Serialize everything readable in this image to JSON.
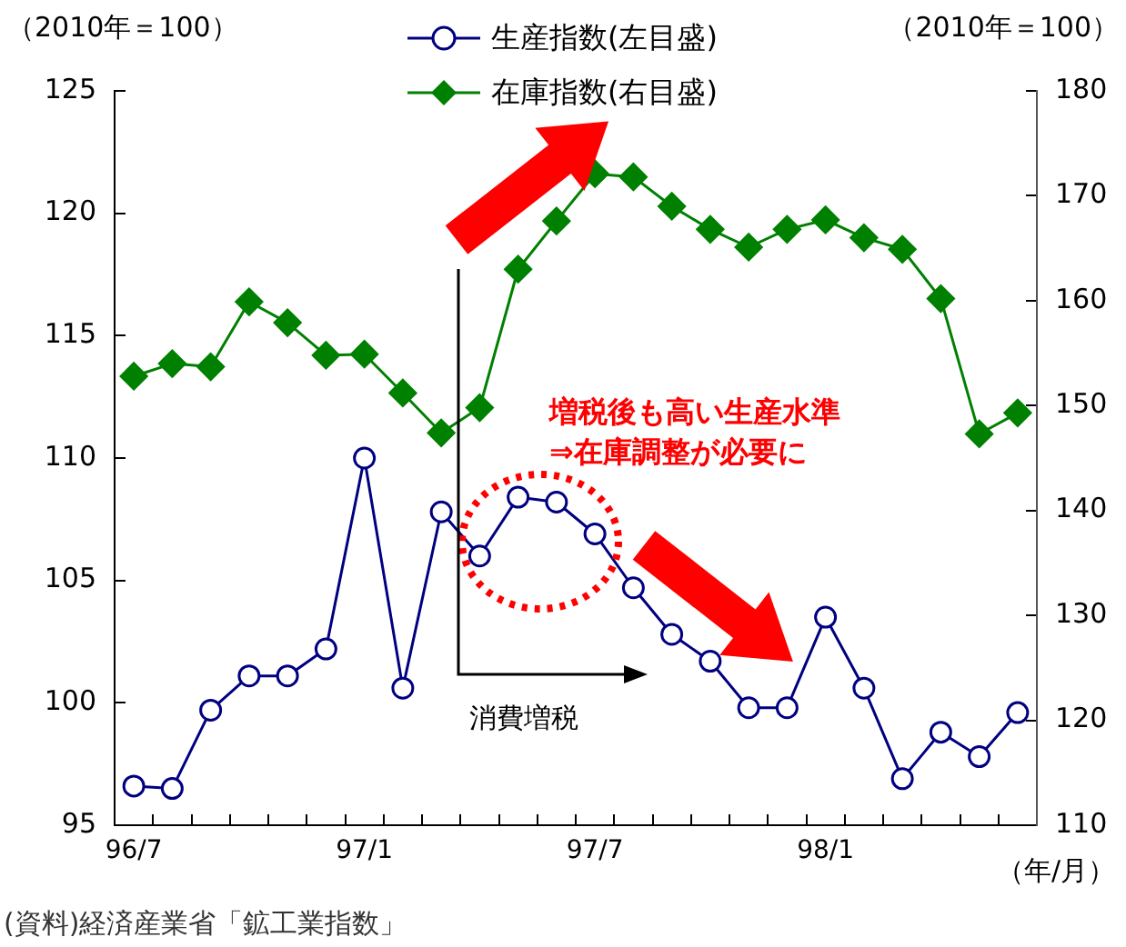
{
  "chart_data": {
    "type": "line",
    "ylabel": "（2010年＝100）",
    "y2label": "（2010年＝100）",
    "xlabel": "（年/月）",
    "categories": [
      "96/7",
      null,
      null,
      null,
      null,
      null,
      "97/1",
      null,
      null,
      null,
      null,
      null,
      "97/7",
      null,
      null,
      null,
      null,
      null,
      "98/1",
      null,
      null,
      null,
      null,
      null
    ],
    "series": [
      {
        "name": "生産指数(左目盛)",
        "color": "#000080",
        "marker": "circle",
        "axis": "y",
        "values": [
          96.6,
          96.5,
          99.7,
          101.1,
          101.1,
          102.2,
          110.0,
          100.6,
          107.8,
          106.0,
          108.4,
          108.2,
          106.9,
          104.7,
          102.8,
          101.7,
          99.8,
          99.8,
          103.5,
          100.6,
          96.9,
          98.8,
          97.8,
          99.6
        ]
      },
      {
        "name": "在庫指数(右目盛)",
        "color": "#008000",
        "marker": "diamond",
        "axis": "y2",
        "values": [
          152.8,
          154.0,
          153.7,
          159.9,
          157.9,
          154.8,
          154.9,
          151.2,
          147.4,
          149.8,
          163.0,
          167.6,
          172.1,
          171.8,
          169.0,
          166.8,
          165.1,
          166.8,
          167.7,
          166.0,
          164.9,
          160.2,
          147.3,
          149.3
        ]
      }
    ],
    "ylim": [
      95,
      125
    ],
    "yticks": [
      95,
      100,
      105,
      110,
      115,
      120,
      125
    ],
    "y2lim": [
      110,
      180
    ],
    "y2ticks": [
      110,
      120,
      130,
      140,
      150,
      160,
      170,
      180
    ],
    "grid": false,
    "legend": "top",
    "annotations": [
      "増税後も高い生産水準\n⇒在庫調整が必要に",
      "消費増税",
      "(資料)経済産業省「鉱工業指数」"
    ]
  }
}
